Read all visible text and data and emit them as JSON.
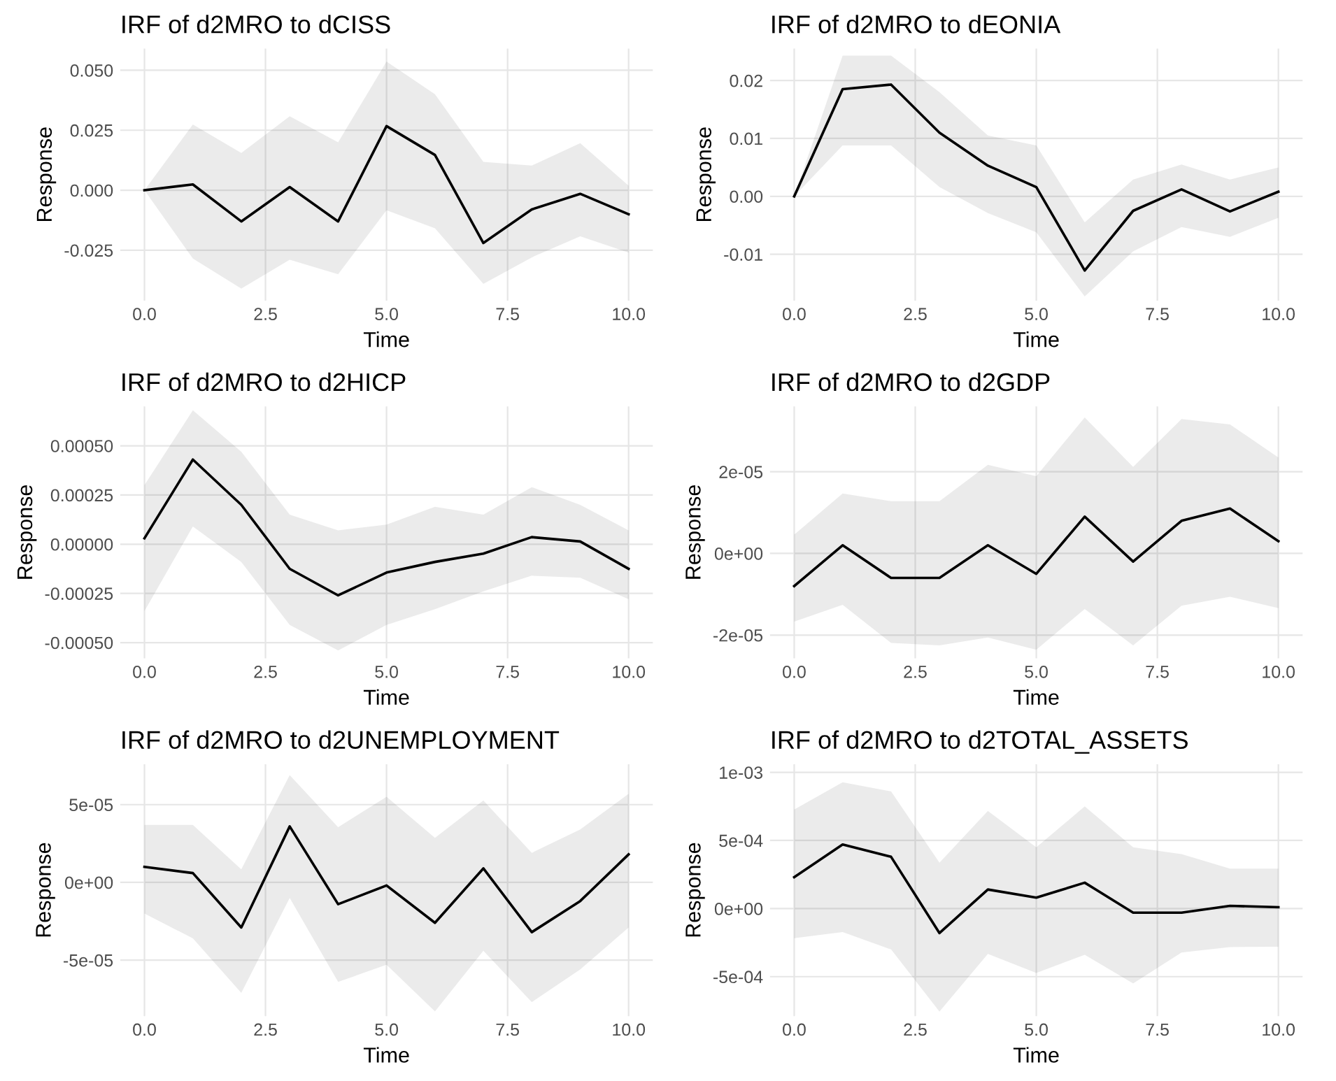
{
  "chart_data": [
    {
      "type": "line",
      "title": "IRF of d2MRO to dCISS",
      "xlabel": "Time",
      "ylabel": "Response",
      "grid": true,
      "x": [
        0,
        1,
        2,
        3,
        4,
        5,
        6,
        7,
        8,
        9,
        10
      ],
      "xlim": [
        -0.5,
        10.5
      ],
      "xticks": [
        {
          "value": 0,
          "label": "0.0"
        },
        {
          "value": 2.5,
          "label": "2.5"
        },
        {
          "value": 5,
          "label": "5.0"
        },
        {
          "value": 7.5,
          "label": "7.5"
        },
        {
          "value": 10,
          "label": "10.0"
        }
      ],
      "ylim": [
        -0.046,
        0.059
      ],
      "yticks": [
        {
          "value": -0.025,
          "label": "-0.025"
        },
        {
          "value": 0,
          "label": "0.000"
        },
        {
          "value": 0.025,
          "label": "0.025"
        },
        {
          "value": 0.05,
          "label": "0.050"
        }
      ],
      "series": [
        {
          "color": "#000000",
          "values": [
            0,
            0.0024,
            -0.013,
            0.0013,
            -0.013,
            0.0267,
            0.0147,
            -0.022,
            -0.008,
            -0.0015,
            -0.01
          ],
          "upper": [
            0,
            0.0274,
            0.0155,
            0.0308,
            0.02,
            0.0536,
            0.04,
            0.0118,
            0.0103,
            0.0196,
            0.0019
          ],
          "lower": [
            0,
            -0.0285,
            -0.041,
            -0.029,
            -0.035,
            -0.0084,
            -0.0159,
            -0.039,
            -0.028,
            -0.0192,
            -0.026
          ]
        }
      ]
    },
    {
      "type": "line",
      "title": "IRF of d2MRO to dEONIA",
      "xlabel": "Time",
      "ylabel": "Response",
      "grid": true,
      "x": [
        0,
        1,
        2,
        3,
        4,
        5,
        6,
        7,
        8,
        9,
        10
      ],
      "xlim": [
        -0.5,
        10.5
      ],
      "xticks": [
        {
          "value": 0,
          "label": "0.0"
        },
        {
          "value": 2.5,
          "label": "2.5"
        },
        {
          "value": 5,
          "label": "5.0"
        },
        {
          "value": 7.5,
          "label": "7.5"
        },
        {
          "value": 10,
          "label": "10.0"
        }
      ],
      "ylim": [
        -0.018,
        0.0255
      ],
      "yticks": [
        {
          "value": -0.01,
          "label": "-0.01"
        },
        {
          "value": 0,
          "label": "0.00"
        },
        {
          "value": 0.01,
          "label": "0.01"
        },
        {
          "value": 0.02,
          "label": "0.02"
        }
      ],
      "series": [
        {
          "color": "#000000",
          "values": [
            0,
            0.0185,
            0.0193,
            0.011,
            0.0053,
            0.0016,
            -0.0128,
            -0.0025,
            0.0012,
            -0.0026,
            0.0008
          ],
          "upper": [
            0,
            0.0243,
            0.0243,
            0.018,
            0.0105,
            0.0088,
            -0.0045,
            0.0029,
            0.0055,
            0.0029,
            0.005
          ],
          "lower": [
            0,
            0.0088,
            0.0088,
            0.0016,
            -0.0029,
            -0.0062,
            -0.0173,
            -0.0095,
            -0.0053,
            -0.007,
            -0.0037
          ]
        }
      ]
    },
    {
      "type": "line",
      "title": "IRF of d2MRO to d2HICP",
      "xlabel": "Time",
      "ylabel": "Response",
      "grid": true,
      "x": [
        0,
        1,
        2,
        3,
        4,
        5,
        6,
        7,
        8,
        9,
        10
      ],
      "xlim": [
        -0.5,
        10.5
      ],
      "xticks": [
        {
          "value": 0,
          "label": "0.0"
        },
        {
          "value": 2.5,
          "label": "2.5"
        },
        {
          "value": 5,
          "label": "5.0"
        },
        {
          "value": 7.5,
          "label": "7.5"
        },
        {
          "value": 10,
          "label": "10.0"
        }
      ],
      "ylim": [
        -0.00058,
        0.0007
      ],
      "yticks": [
        {
          "value": -0.0005,
          "label": "-0.00050"
        },
        {
          "value": -0.00025,
          "label": "-0.00025"
        },
        {
          "value": 0,
          "label": "0.00000"
        },
        {
          "value": 0.00025,
          "label": "0.00025"
        },
        {
          "value": 0.0005,
          "label": "0.00050"
        }
      ],
      "series": [
        {
          "color": "#000000",
          "values": [
            3e-05,
            0.00043,
            0.0002,
            -0.000125,
            -0.00026,
            -0.000144,
            -9e-05,
            -4.8e-05,
            3.6e-05,
            1.4e-05,
            -0.000125
          ],
          "upper": [
            0.0003,
            0.00068,
            0.00047,
            0.00015,
            7e-05,
            0.0001,
            0.00019,
            0.00015,
            0.00029,
            0.0002,
            7e-05
          ],
          "lower": [
            -0.00034,
            9e-05,
            -9e-05,
            -0.00041,
            -0.00054,
            -0.00041,
            -0.00033,
            -0.00024,
            -0.00016,
            -0.00017,
            -0.00028
          ]
        }
      ]
    },
    {
      "type": "line",
      "title": "IRF of d2MRO to d2GDP",
      "xlabel": "Time",
      "ylabel": "Response",
      "grid": true,
      "x": [
        0,
        1,
        2,
        3,
        4,
        5,
        6,
        7,
        8,
        9,
        10
      ],
      "xlim": [
        -0.5,
        10.5
      ],
      "xticks": [
        {
          "value": 0,
          "label": "0.0"
        },
        {
          "value": 2.5,
          "label": "2.5"
        },
        {
          "value": 5,
          "label": "5.0"
        },
        {
          "value": 7.5,
          "label": "7.5"
        },
        {
          "value": 10,
          "label": "10.0"
        }
      ],
      "ylim": [
        -2.57e-05,
        3.6e-05
      ],
      "yticks": [
        {
          "value": -2e-05,
          "label": "-2e-05"
        },
        {
          "value": 0,
          "label": "0e+00"
        },
        {
          "value": 2e-05,
          "label": "2e-05"
        }
      ],
      "series": [
        {
          "color": "#000000",
          "values": [
            -8e-06,
            2e-06,
            -6e-06,
            -6e-06,
            2e-06,
            -5e-06,
            9e-06,
            -2e-06,
            8e-06,
            1.1e-05,
            3e-06
          ],
          "upper": [
            4.6e-06,
            1.47e-05,
            1.28e-05,
            1.28e-05,
            2.17e-05,
            1.89e-05,
            3.33e-05,
            2.12e-05,
            3.29e-05,
            3.16e-05,
            2.35e-05
          ],
          "lower": [
            -1.67e-05,
            -1.26e-05,
            -2.19e-05,
            -2.25e-05,
            -2.06e-05,
            -2.36e-05,
            -1.36e-05,
            -2.25e-05,
            -1.28e-05,
            -1.06e-05,
            -1.34e-05
          ]
        }
      ]
    },
    {
      "type": "line",
      "title": "IRF of d2MRO to d2UNEMPLOYMENT",
      "xlabel": "Time",
      "ylabel": "Response",
      "grid": true,
      "x": [
        0,
        1,
        2,
        3,
        4,
        5,
        6,
        7,
        8,
        9,
        10
      ],
      "xlim": [
        -0.5,
        10.5
      ],
      "xticks": [
        {
          "value": 0,
          "label": "0.0"
        },
        {
          "value": 2.5,
          "label": "2.5"
        },
        {
          "value": 5,
          "label": "5.0"
        },
        {
          "value": 7.5,
          "label": "7.5"
        },
        {
          "value": 10,
          "label": "10.0"
        }
      ],
      "ylim": [
        -8.6e-05,
        7.6e-05
      ],
      "yticks": [
        {
          "value": -5e-05,
          "label": "-5e-05"
        },
        {
          "value": 0,
          "label": "0e+00"
        },
        {
          "value": 5e-05,
          "label": "5e-05"
        }
      ],
      "series": [
        {
          "color": "#000000",
          "values": [
            1e-05,
            6e-06,
            -2.9e-05,
            3.6e-05,
            -1.4e-05,
            -2e-06,
            -2.6e-05,
            9e-06,
            -3.2e-05,
            -1.2e-05,
            1.8e-05
          ],
          "upper": [
            3.7e-05,
            3.7e-05,
            8.4e-06,
            6.9e-05,
            3.55e-05,
            5.5e-05,
            2.86e-05,
            5.27e-05,
            1.9e-05,
            3.4e-05,
            5.7e-05
          ],
          "lower": [
            -2e-05,
            -3.6e-05,
            -7.1e-05,
            -1e-05,
            -6.4e-05,
            -5.3e-05,
            -8.3e-05,
            -4.4e-05,
            -7.7e-05,
            -5.6e-05,
            -2.9e-05
          ]
        }
      ]
    },
    {
      "type": "line",
      "title": "IRF of d2MRO to d2TOTAL_ASSETS",
      "xlabel": "Time",
      "ylabel": "Response",
      "grid": true,
      "x": [
        0,
        1,
        2,
        3,
        4,
        5,
        6,
        7,
        8,
        9,
        10
      ],
      "xlim": [
        -0.5,
        10.5
      ],
      "xticks": [
        {
          "value": 0,
          "label": "0.0"
        },
        {
          "value": 2.5,
          "label": "2.5"
        },
        {
          "value": 5,
          "label": "5.0"
        },
        {
          "value": 7.5,
          "label": "7.5"
        },
        {
          "value": 10,
          "label": "10.0"
        }
      ],
      "ylim": [
        -0.00079,
        0.00106
      ],
      "yticks": [
        {
          "value": -0.0005,
          "label": "-5e-04"
        },
        {
          "value": 0,
          "label": "0e+00"
        },
        {
          "value": 0.0005,
          "label": "5e-04"
        },
        {
          "value": 0.001,
          "label": "1e-03"
        }
      ],
      "series": [
        {
          "color": "#000000",
          "values": [
            0.00023,
            0.00047,
            0.00038,
            -0.00018,
            0.00014,
            8e-05,
            0.00019,
            -3e-05,
            -3e-05,
            2e-05,
            1e-05
          ],
          "upper": [
            0.000727,
            0.000927,
            0.00086,
            0.000337,
            0.000717,
            0.00045,
            0.00075,
            0.00045,
            0.0004,
            0.000293,
            0.000293
          ],
          "lower": [
            -0.000217,
            -0.000173,
            -0.0003,
            -0.000757,
            -0.000333,
            -0.000473,
            -0.00034,
            -0.00055,
            -0.000323,
            -0.000283,
            -0.00028
          ]
        }
      ]
    }
  ]
}
